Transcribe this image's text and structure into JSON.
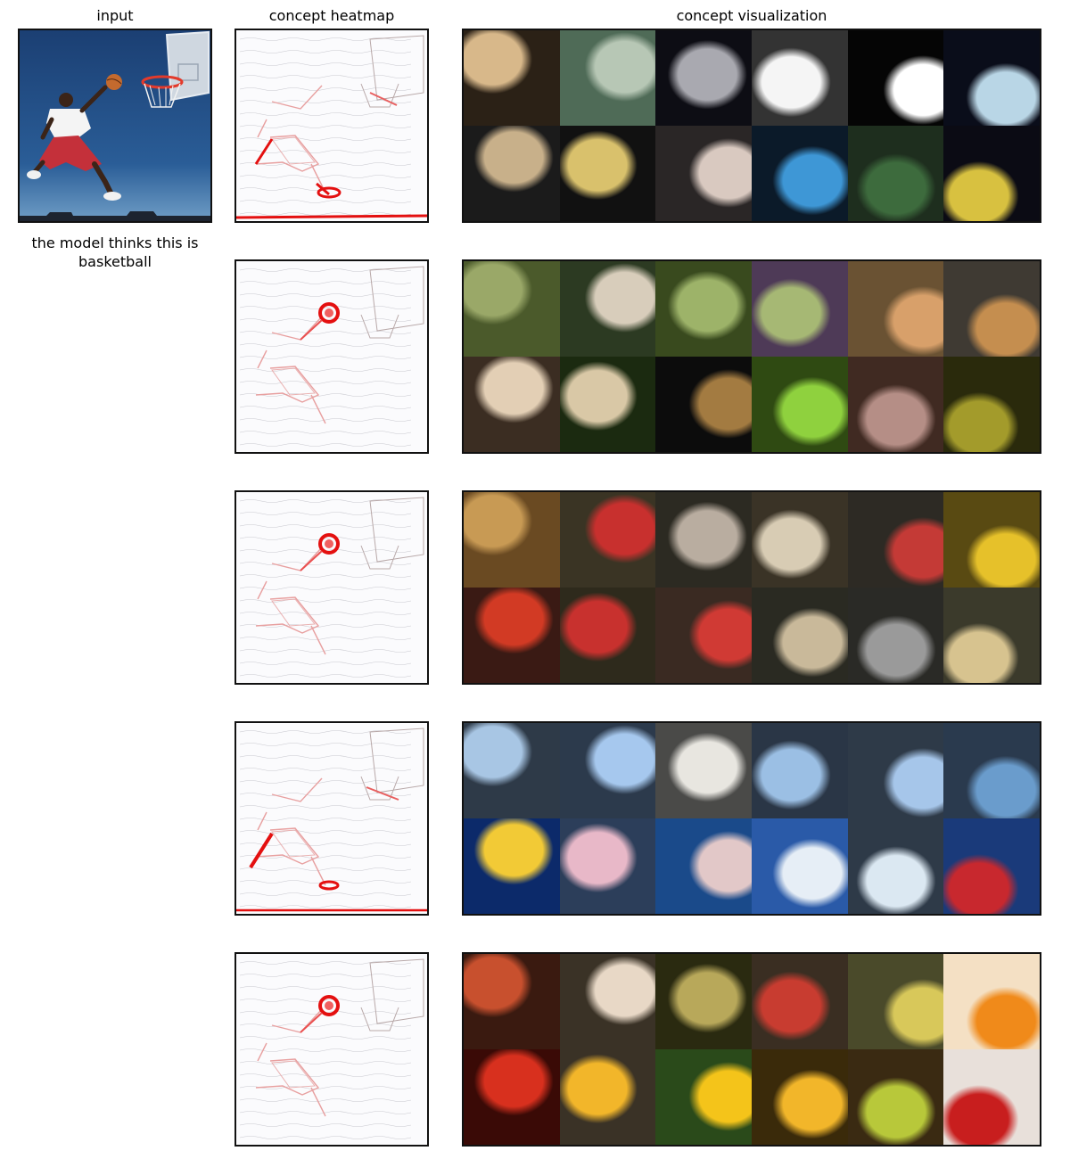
{
  "titles": {
    "input": "input",
    "heatmap": "concept heatmap",
    "visualization": "concept visualization"
  },
  "caption": "the model thinks this is basketball",
  "rows": [
    {
      "heat_focus": "legs-and-ground",
      "tiles": [
        [
          "#2b2116",
          "#d8b88a"
        ],
        [
          "#4f6b57",
          "#b7c7b5"
        ],
        [
          "#0d0d14",
          "#a9a9b0"
        ],
        [
          "#333333",
          "#f5f5f5"
        ],
        [
          "#050505",
          "#ffffff"
        ],
        [
          "#0a0d1a",
          "#b9d6e6"
        ],
        [
          "#1b1b1b",
          "#c8b08a"
        ],
        [
          "#111111",
          "#d9c16c"
        ],
        [
          "#2a2626",
          "#d9c9c0"
        ],
        [
          "#0b1a29",
          "#3e97d6"
        ],
        [
          "#1e2e1e",
          "#3d6b3d"
        ],
        [
          "#0b0b14",
          "#d8c140"
        ]
      ]
    },
    {
      "heat_focus": "ball",
      "tiles": [
        [
          "#4b5a2b",
          "#9aa868"
        ],
        [
          "#2c3a22",
          "#d8cdbb"
        ],
        [
          "#394a1e",
          "#9db369"
        ],
        [
          "#4e3a57",
          "#a6b874"
        ],
        [
          "#6a5233",
          "#d8a06a"
        ],
        [
          "#3f3a33",
          "#c58e4f"
        ],
        [
          "#3b2d22",
          "#e3cfb5"
        ],
        [
          "#1b2a10",
          "#d9c8a6"
        ],
        [
          "#0c0c0c",
          "#a37b41"
        ],
        [
          "#2f4a12",
          "#8fd13e"
        ],
        [
          "#402a22",
          "#b58e86"
        ],
        [
          "#2a2a0c",
          "#a39b2b"
        ]
      ]
    },
    {
      "heat_focus": "ball",
      "tiles": [
        [
          "#6a4a22",
          "#c89a54"
        ],
        [
          "#3a3424",
          "#c8302e"
        ],
        [
          "#2c2a22",
          "#b9ada0"
        ],
        [
          "#3a3326",
          "#d8ccb4"
        ],
        [
          "#2d2a24",
          "#c43a36"
        ],
        [
          "#594a12",
          "#e6c12a"
        ],
        [
          "#3a1a14",
          "#d23a24"
        ],
        [
          "#2e2a1c",
          "#c8312e"
        ],
        [
          "#3a2a22",
          "#d03a34"
        ],
        [
          "#2a2a22",
          "#c9b99a"
        ],
        [
          "#2a2a26",
          "#9a9a9a"
        ],
        [
          "#3b3a2b",
          "#d7c38f"
        ]
      ]
    },
    {
      "heat_focus": "legs-and-hoop",
      "tiles": [
        [
          "#2e3a48",
          "#a8c6e4"
        ],
        [
          "#2c3a4c",
          "#a6c8ee"
        ],
        [
          "#4a4a48",
          "#e8e6e0"
        ],
        [
          "#2a3646",
          "#9bbfe4"
        ],
        [
          "#2e3a48",
          "#a6c6ea"
        ],
        [
          "#2a3a4e",
          "#6a9ccc"
        ],
        [
          "#0c2a6a",
          "#f2ca36"
        ],
        [
          "#2c3e5a",
          "#e8b8c8"
        ],
        [
          "#1a4a8a",
          "#e2c8c8"
        ],
        [
          "#2a5aa8",
          "#e6eef6"
        ],
        [
          "#2e3a48",
          "#dbe8f2"
        ],
        [
          "#1a3a7a",
          "#c8282e"
        ]
      ]
    },
    {
      "heat_focus": "ball",
      "tiles": [
        [
          "#3a1a10",
          "#c8502e"
        ],
        [
          "#3a3226",
          "#e8d8c6"
        ],
        [
          "#2a2a10",
          "#b8a85a"
        ],
        [
          "#3a2e22",
          "#c83c30"
        ],
        [
          "#4a4a2a",
          "#d8c85a"
        ],
        [
          "#f4e0c4",
          "#f08a1a"
        ],
        [
          "#3a0a06",
          "#d8301e"
        ],
        [
          "#3a3226",
          "#f2b62a"
        ],
        [
          "#2a4a1a",
          "#f4c41a"
        ],
        [
          "#3a2a0a",
          "#f2b62a"
        ],
        [
          "#3a2a12",
          "#b8c83a"
        ],
        [
          "#e8e0da",
          "#c81e1e"
        ]
      ]
    }
  ]
}
